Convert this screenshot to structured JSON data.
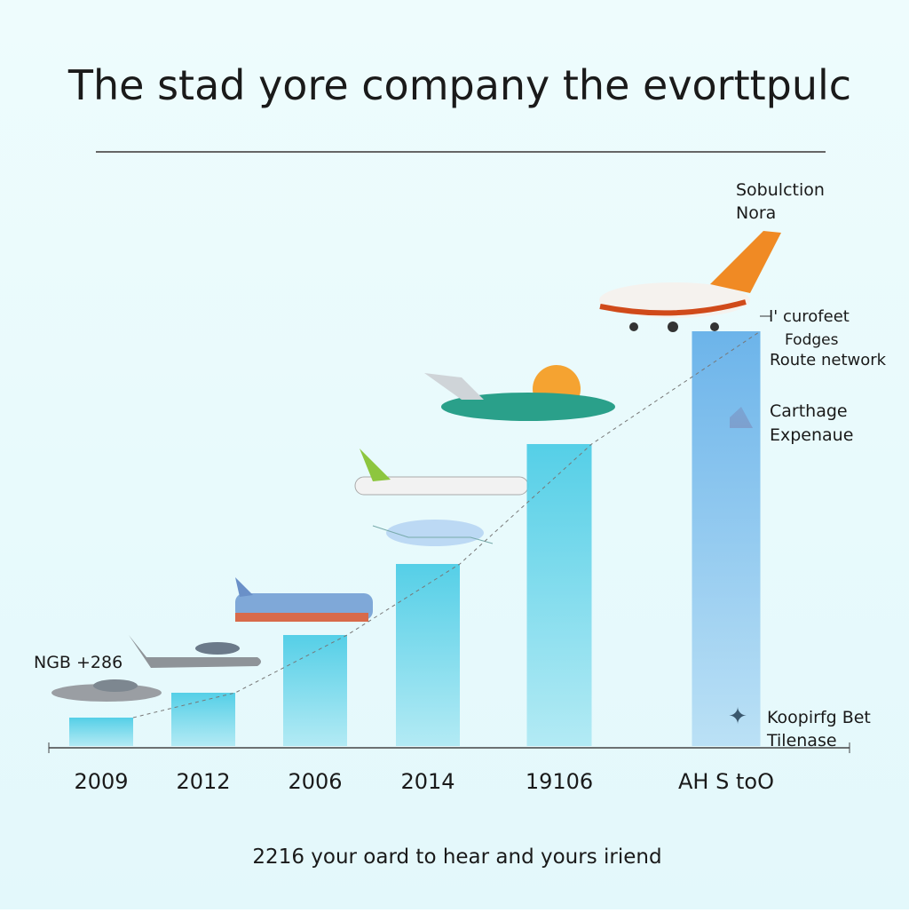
{
  "chart_data": {
    "type": "bar",
    "title": "The stad yore company the evorttpulc",
    "categories": [
      "2009",
      "2012",
      "2006",
      "2014",
      "19106",
      "AH S toO"
    ],
    "values": [
      32,
      60,
      125,
      205,
      340,
      467
    ],
    "colors": [
      "#55cfe7",
      "#55cfe7",
      "#55cfe7",
      "#55cfe7",
      "#55cfe7",
      "#6cb4ea"
    ],
    "ylim": [
      0,
      500
    ],
    "annotations": [
      "NGB +286",
      "Sobulction",
      "Nora",
      "I' curofeet",
      "Fodges",
      "Route network",
      "Carthage",
      "Expenaue",
      "Koopirfg Bet",
      "Tilenase"
    ],
    "footer": "2216 your oard to hear and yours iriend"
  }
}
